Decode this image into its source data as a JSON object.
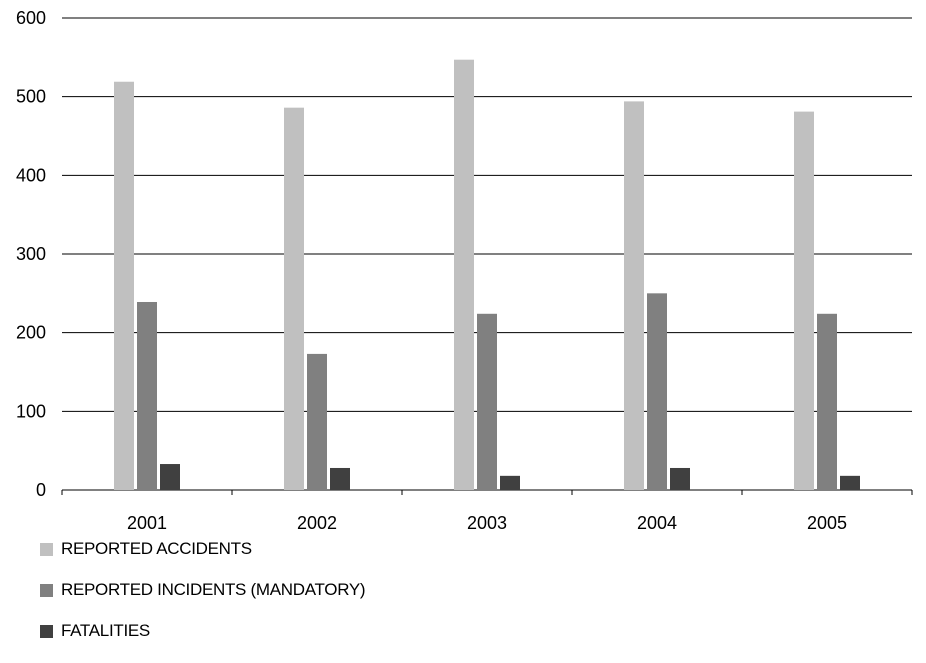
{
  "chart_data": {
    "type": "bar",
    "categories": [
      "2001",
      "2002",
      "2003",
      "2004",
      "2005"
    ],
    "series": [
      {
        "name": "REPORTED ACCIDENTS",
        "color": "#c0c0c0",
        "values": [
          519,
          486,
          547,
          494,
          481
        ]
      },
      {
        "name": "REPORTED INCIDENTS (MANDATORY)",
        "color": "#808080",
        "values": [
          239,
          173,
          224,
          250,
          224
        ]
      },
      {
        "name": "FATALITIES",
        "color": "#404040",
        "values": [
          33,
          28,
          18,
          28,
          18
        ]
      }
    ],
    "ylim": [
      0,
      600
    ],
    "yticks": [
      "0",
      "100",
      "200",
      "300",
      "400",
      "500",
      "600"
    ],
    "grid": true,
    "legend_position": "bottom-left"
  }
}
